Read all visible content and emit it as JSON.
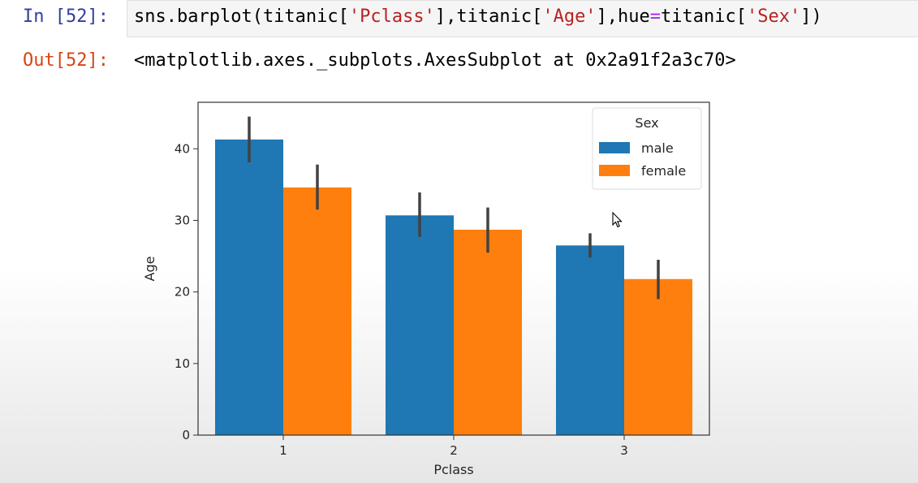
{
  "input_cell": {
    "prompt": "In [52]:",
    "code_parts": [
      {
        "text": "sns.barplot(titanic[",
        "cls": ""
      },
      {
        "text": "'Pclass'",
        "cls": "str"
      },
      {
        "text": "],titanic[",
        "cls": ""
      },
      {
        "text": "'Age'",
        "cls": "str"
      },
      {
        "text": "],hue",
        "cls": ""
      },
      {
        "text": "=",
        "cls": "op"
      },
      {
        "text": "titanic[",
        "cls": ""
      },
      {
        "text": "'Sex'",
        "cls": "str"
      },
      {
        "text": "])",
        "cls": ""
      }
    ]
  },
  "output_cell": {
    "prompt": "Out[52]:",
    "text": "<matplotlib.axes._subplots.AxesSubplot at 0x2a91f2a3c70>"
  },
  "icons": {
    "cursor": "mouse-pointer-icon"
  },
  "chart_data": {
    "type": "bar",
    "categories": [
      "1",
      "2",
      "3"
    ],
    "series": [
      {
        "name": "male",
        "color": "#1f77b4",
        "values": [
          41.3,
          30.7,
          26.5
        ],
        "ci": [
          [
            38.1,
            44.5
          ],
          [
            27.7,
            33.9
          ],
          [
            24.8,
            28.2
          ]
        ]
      },
      {
        "name": "female",
        "color": "#ff7f0e",
        "values": [
          34.6,
          28.7,
          21.8
        ],
        "ci": [
          [
            31.5,
            37.8
          ],
          [
            25.5,
            31.8
          ],
          [
            19.0,
            24.5
          ]
        ]
      }
    ],
    "xlabel": "Pclass",
    "ylabel": "Age",
    "ylim": [
      0,
      46.5
    ],
    "yticks": [
      0,
      10,
      20,
      30,
      40
    ],
    "legend": {
      "title": "Sex",
      "placement": "top-right"
    },
    "grid": false
  }
}
